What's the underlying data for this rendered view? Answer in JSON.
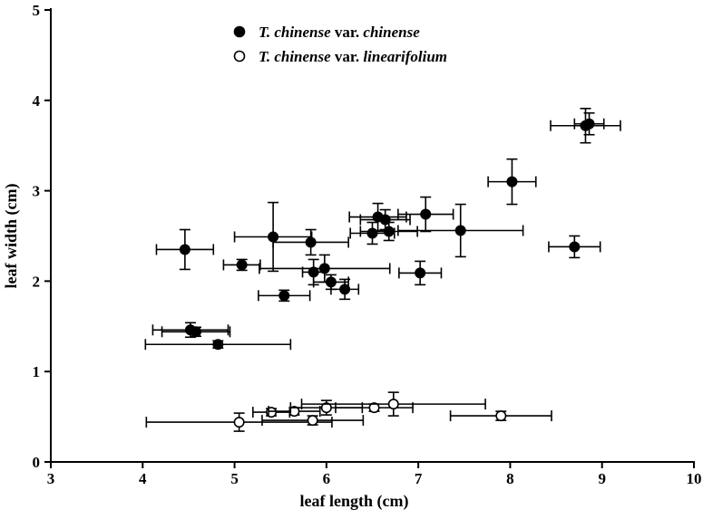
{
  "chart_data": {
    "type": "scatter",
    "xlabel": "leaf length (cm)",
    "ylabel": "leaf width (cm)",
    "xlim": [
      3,
      10
    ],
    "ylim": [
      0,
      5
    ],
    "xticks": [
      "3",
      "4",
      "5",
      "6",
      "7",
      "8",
      "9",
      "10"
    ],
    "yticks": [
      "0",
      "1",
      "2",
      "3",
      "4",
      "5"
    ],
    "grid": false,
    "legend_position": "top-center",
    "error_bars": true,
    "series": [
      {
        "name": "T. chinense var. chinense",
        "name_parts": [
          {
            "text": "T. chinense",
            "italic": true
          },
          {
            "text": " var. ",
            "italic": false
          },
          {
            "text": "chinense",
            "italic": true
          }
        ],
        "marker": "filled-circle",
        "color": "#000000",
        "points": [
          {
            "x": 8.82,
            "y": 3.72,
            "xerr": 0.38,
            "yerr": 0.19
          },
          {
            "x": 8.86,
            "y": 3.74,
            "xerr": 0.16,
            "yerr": 0.12
          },
          {
            "x": 8.02,
            "y": 3.1,
            "xerr": 0.26,
            "yerr": 0.25
          },
          {
            "x": 8.7,
            "y": 2.38,
            "xerr": 0.28,
            "yerr": 0.12
          },
          {
            "x": 7.08,
            "y": 2.74,
            "xerr": 0.3,
            "yerr": 0.19
          },
          {
            "x": 6.56,
            "y": 2.71,
            "xerr": 0.31,
            "yerr": 0.15
          },
          {
            "x": 6.64,
            "y": 2.68,
            "xerr": 0.27,
            "yerr": 0.11
          },
          {
            "x": 6.5,
            "y": 2.53,
            "xerr": 0.24,
            "yerr": 0.12
          },
          {
            "x": 6.68,
            "y": 2.55,
            "xerr": 0.31,
            "yerr": 0.1
          },
          {
            "x": 7.46,
            "y": 2.56,
            "xerr": 0.68,
            "yerr": 0.29
          },
          {
            "x": 7.02,
            "y": 2.09,
            "xerr": 0.23,
            "yerr": 0.13
          },
          {
            "x": 5.42,
            "y": 2.49,
            "xerr": 0.42,
            "yerr": 0.38
          },
          {
            "x": 5.83,
            "y": 2.43,
            "xerr": 0.41,
            "yerr": 0.14
          },
          {
            "x": 4.46,
            "y": 2.35,
            "xerr": 0.31,
            "yerr": 0.22
          },
          {
            "x": 5.08,
            "y": 2.18,
            "xerr": 0.2,
            "yerr": 0.06
          },
          {
            "x": 5.98,
            "y": 2.14,
            "xerr": 0.71,
            "yerr": 0.15
          },
          {
            "x": 5.86,
            "y": 2.1,
            "xerr": 0.12,
            "yerr": 0.14
          },
          {
            "x": 6.05,
            "y": 1.99,
            "xerr": 0.19,
            "yerr": 0.08
          },
          {
            "x": 6.2,
            "y": 1.91,
            "xerr": 0.15,
            "yerr": 0.11
          },
          {
            "x": 5.54,
            "y": 1.84,
            "xerr": 0.28,
            "yerr": 0.06
          },
          {
            "x": 4.52,
            "y": 1.46,
            "xerr": 0.41,
            "yerr": 0.08
          },
          {
            "x": 4.58,
            "y": 1.44,
            "xerr": 0.37,
            "yerr": 0.05
          },
          {
            "x": 4.82,
            "y": 1.3,
            "xerr": 0.79,
            "yerr": 0.04
          }
        ]
      },
      {
        "name": "T. chinense var. linearifolium",
        "name_parts": [
          {
            "text": "T. chinense",
            "italic": true
          },
          {
            "text": " var. ",
            "italic": false
          },
          {
            "text": "linearifolium",
            "italic": true
          }
        ],
        "marker": "open-circle",
        "color": "#000000",
        "points": [
          {
            "x": 5.05,
            "y": 0.44,
            "xerr": 1.01,
            "yerr": 0.1
          },
          {
            "x": 5.4,
            "y": 0.55,
            "xerr": 0.2,
            "yerr": 0.04
          },
          {
            "x": 5.65,
            "y": 0.56,
            "xerr": 0.28,
            "yerr": 0.04
          },
          {
            "x": 5.85,
            "y": 0.46,
            "xerr": 0.55,
            "yerr": 0.05
          },
          {
            "x": 6.0,
            "y": 0.6,
            "xerr": 0.39,
            "yerr": 0.08
          },
          {
            "x": 6.52,
            "y": 0.6,
            "xerr": 0.42,
            "yerr": 0.04
          },
          {
            "x": 6.73,
            "y": 0.64,
            "xerr": 1.0,
            "yerr": 0.13
          },
          {
            "x": 7.9,
            "y": 0.51,
            "xerr": 0.55,
            "yerr": 0.05
          }
        ]
      }
    ]
  }
}
